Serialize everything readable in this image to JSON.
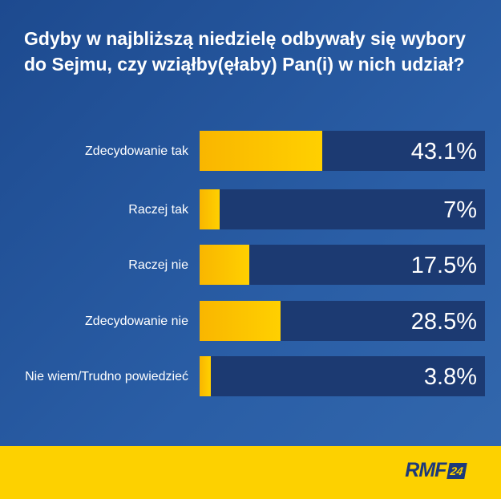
{
  "chart_data": {
    "type": "bar",
    "orientation": "horizontal",
    "title": "Gdyby w najbliższą niedzielę odbywały się wybory do Sejmu, czy wziąłby(ęłaby) Pan(i) w nich udział?",
    "categories": [
      "Zdecydowanie tak",
      "Raczej tak",
      "Raczej nie",
      "Zdecydowanie nie",
      "Nie wiem/Trudno powiedzieć"
    ],
    "values": [
      43.1,
      7,
      17.5,
      28.5,
      3.8
    ],
    "value_labels": [
      "43.1%",
      "7%",
      "17.5%",
      "28.5%",
      "3.8%"
    ],
    "xlim": [
      0,
      100
    ],
    "colors": {
      "bar": "#ffc800",
      "track": "#1c3a72",
      "background": "#2a5ea6",
      "footer": "#fdd100"
    }
  },
  "footer": {
    "logo_text": "RMF",
    "logo_badge": "24"
  }
}
